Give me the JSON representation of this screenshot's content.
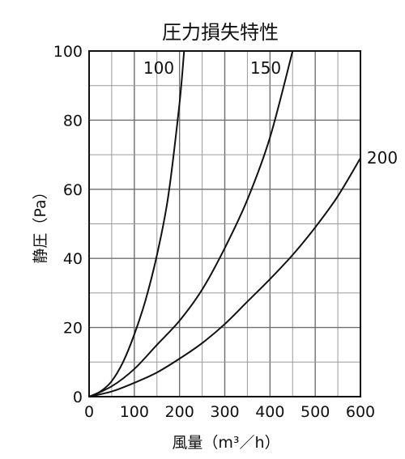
{
  "chart_data": {
    "type": "line",
    "title": "圧力損失特性",
    "xlabel": "風量（m³／h）",
    "ylabel": "静圧（Pa）",
    "xlim": [
      0,
      600
    ],
    "ylim": [
      0,
      100
    ],
    "xticks": [
      "0",
      "100",
      "200",
      "300",
      "400",
      "500",
      "600"
    ],
    "yticks": [
      "0",
      "20",
      "40",
      "60",
      "80",
      "100"
    ],
    "grid": true,
    "series": [
      {
        "name": "100",
        "x": [
          0,
          25,
          50,
          75,
          100,
          125,
          150,
          175,
          200,
          210
        ],
        "y": [
          0,
          1.5,
          4.5,
          10,
          18,
          28,
          41,
          58,
          85,
          100
        ]
      },
      {
        "name": "150",
        "x": [
          0,
          50,
          100,
          150,
          200,
          250,
          300,
          350,
          400,
          450
        ],
        "y": [
          0,
          3,
          8,
          15,
          22,
          31,
          43,
          57,
          75,
          100
        ]
      },
      {
        "name": "200",
        "x": [
          0,
          50,
          100,
          150,
          200,
          250,
          300,
          350,
          400,
          450,
          500,
          550,
          600
        ],
        "y": [
          0,
          1.5,
          4,
          7,
          11,
          15.5,
          21,
          27.5,
          34,
          41,
          49,
          58,
          69
        ]
      }
    ]
  }
}
